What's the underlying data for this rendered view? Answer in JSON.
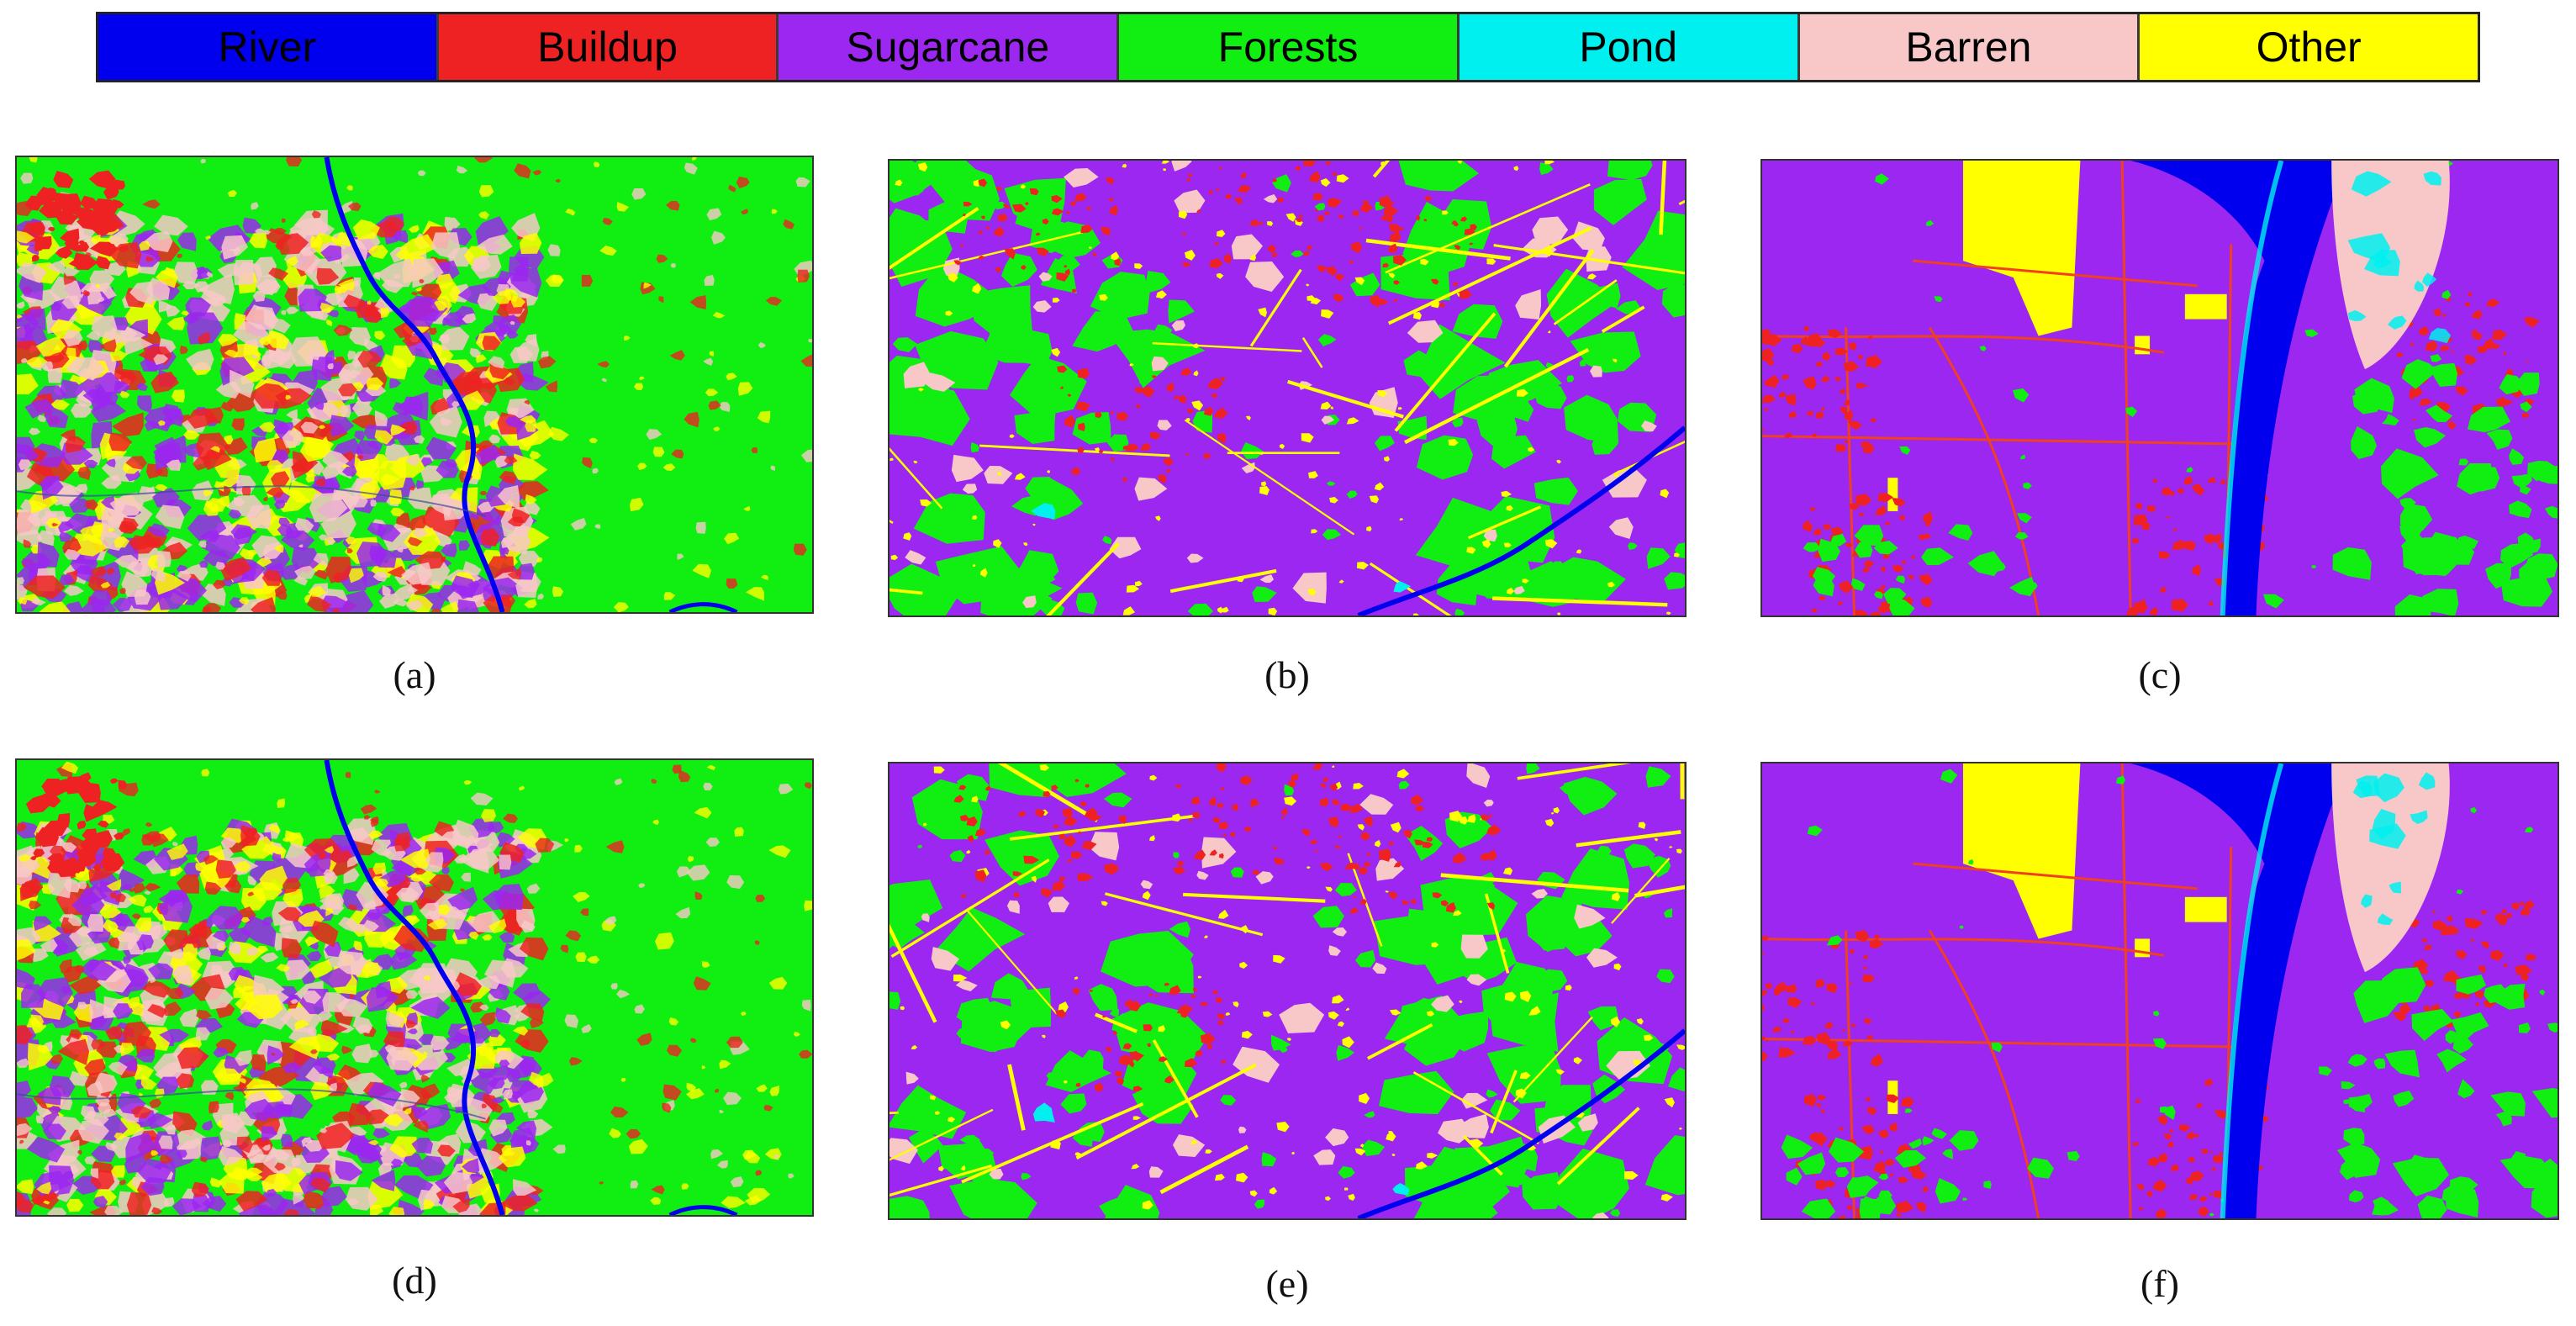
{
  "legend": {
    "items": [
      {
        "label": "River",
        "color": "#0000ee"
      },
      {
        "label": "Buildup",
        "color": "#ee2222"
      },
      {
        "label": "Sugarcane",
        "color": "#9b27f0"
      },
      {
        "label": "Forests",
        "color": "#11ee11"
      },
      {
        "label": "Pond",
        "color": "#00f0f0"
      },
      {
        "label": "Barren",
        "color": "#f8c8c8"
      },
      {
        "label": "Other",
        "color": "#ffff00"
      }
    ]
  },
  "panels": [
    {
      "caption": "(a)",
      "map": "region-1"
    },
    {
      "caption": "(b)",
      "map": "region-2"
    },
    {
      "caption": "(c)",
      "map": "region-3"
    },
    {
      "caption": "(d)",
      "map": "region-1"
    },
    {
      "caption": "(e)",
      "map": "region-2"
    },
    {
      "caption": "(f)",
      "map": "region-3"
    }
  ]
}
